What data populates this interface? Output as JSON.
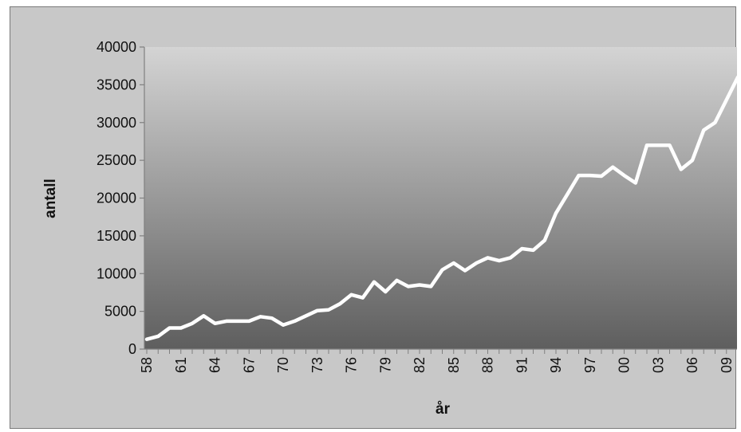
{
  "chart_data": {
    "type": "line",
    "title": "",
    "xlabel": "år",
    "ylabel": "antall",
    "ylim": [
      0,
      40000
    ],
    "y_ticks": [
      "0",
      "5000",
      "10000",
      "15000",
      "20000",
      "25000",
      "30000",
      "35000",
      "40000"
    ],
    "x_tick_labels": [
      "58",
      "61",
      "64",
      "67",
      "70",
      "73",
      "76",
      "79",
      "82",
      "85",
      "88",
      "91",
      "94",
      "97",
      "00",
      "03",
      "06",
      "09"
    ],
    "grid": false,
    "legend": "none",
    "colors": {
      "line": "#ffffff",
      "plot_gradient_top": "#d4d4d4",
      "plot_gradient_bottom": "#5e5e5e",
      "frame_background": "#c8c8c8"
    },
    "series": [
      {
        "x": [
          "1958",
          "1959",
          "1960",
          "1961",
          "1962",
          "1963",
          "1964",
          "1965",
          "1966",
          "1967",
          "1968",
          "1969",
          "1970",
          "1971",
          "1972",
          "1973",
          "1974",
          "1975",
          "1976",
          "1977",
          "1978",
          "1979",
          "1980",
          "1981",
          "1982",
          "1983",
          "1984",
          "1985",
          "1986",
          "1987",
          "1988",
          "1989",
          "1990",
          "1991",
          "1992",
          "1993",
          "1994",
          "1995",
          "1996",
          "1997",
          "1998",
          "1999",
          "2000",
          "2001",
          "2002",
          "2003",
          "2004",
          "2005",
          "2006",
          "2007",
          "2008",
          "2009",
          "2010"
        ],
        "values": [
          1300,
          1700,
          2800,
          2800,
          3400,
          4400,
          3400,
          3700,
          3700,
          3700,
          4300,
          4100,
          3200,
          3700,
          4400,
          5100,
          5200,
          6000,
          7200,
          6800,
          8900,
          7600,
          9100,
          8300,
          8500,
          8300,
          10500,
          11400,
          10400,
          11400,
          12100,
          11700,
          12100,
          13300,
          13100,
          14400,
          18000,
          20500,
          23000,
          23000,
          22900,
          24100,
          23000,
          22000,
          27000,
          27000,
          27000,
          23800,
          25000,
          29000,
          30000,
          33000,
          36000
        ]
      }
    ]
  }
}
